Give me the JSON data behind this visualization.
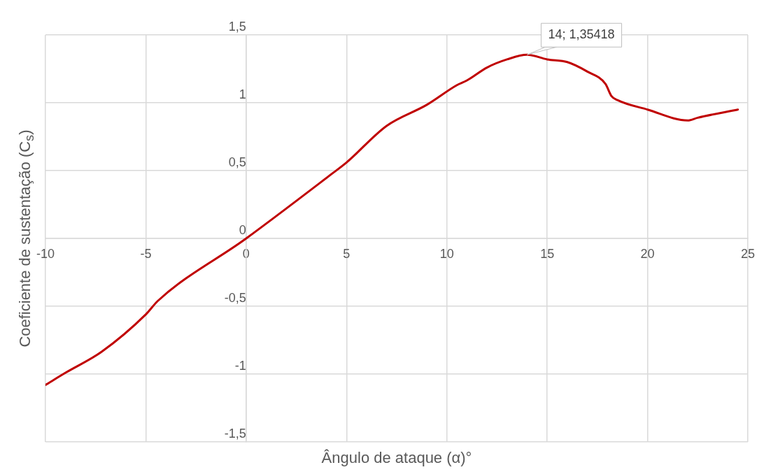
{
  "chart_data": {
    "type": "line",
    "xlabel": "Ângulo de ataque (α)°",
    "ylabel": "Coeficiente de sustentação (C$_{s}$)",
    "x": [
      -10,
      -9,
      -7.2,
      -5,
      -4.4,
      0,
      4.3,
      5,
      7,
      9,
      10.5,
      11,
      12,
      13,
      14,
      15,
      16,
      17,
      17.9,
      18.2,
      18.5,
      20,
      22,
      22.5,
      24.5
    ],
    "series": [
      {
        "color": "#c00000",
        "values": [
          -1.08,
          -0.99,
          -0.835,
          -0.56,
          -0.46,
          0,
          0.48,
          0.56,
          0.83,
          0.985,
          1.13,
          1.165,
          1.26,
          1.32,
          1.35418,
          1.32,
          1.3,
          1.23,
          1.14,
          1.05,
          1.02,
          0.95,
          0.87,
          0.89,
          0.95
        ]
      }
    ],
    "xlim": [
      -10,
      25
    ],
    "xticks": [
      -10,
      -5,
      0,
      5,
      10,
      15,
      20,
      25
    ],
    "ylim": [
      -1.5,
      1.5
    ],
    "yticks": [
      {
        "value": -1.5,
        "label": "-1,5"
      },
      -1,
      {
        "value": -0.5,
        "label": "-0,5"
      },
      0,
      {
        "value": 0.5,
        "label": "0,5"
      },
      1,
      {
        "value": 1.5,
        "label": "1,5"
      }
    ],
    "annotations": [
      {
        "text": "14; 1,35418",
        "x": 14,
        "y": 1.35418
      }
    ],
    "grid": true,
    "legend": false,
    "marker": "none",
    "line_style": "solid"
  }
}
